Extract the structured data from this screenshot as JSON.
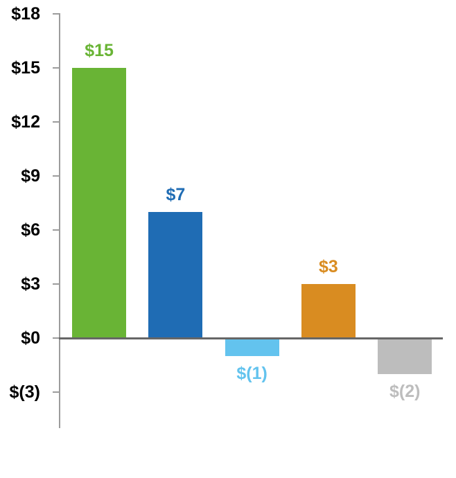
{
  "chart_data": {
    "type": "bar",
    "title": "",
    "xlabel": "",
    "ylabel": "",
    "grid": false,
    "legend": false,
    "baseline_value": 0,
    "values": [
      15,
      7,
      -1,
      3,
      -2
    ],
    "data_labels": [
      "$15",
      "$7",
      "$(1)",
      "$3",
      "$(2)"
    ],
    "bar_colors": [
      "#69B435",
      "#1F6CB4",
      "#63C3EE",
      "#D98C21",
      "#BDBDBD"
    ],
    "label_colors": [
      "#69B435",
      "#1F6CB4",
      "#63C3EE",
      "#D98C21",
      "#BDBDBD"
    ],
    "y_axis": {
      "tick_values": [
        18,
        15,
        12,
        9,
        6,
        3,
        0,
        -3
      ],
      "tick_labels": [
        "$18",
        "$15",
        "$12",
        "$9",
        "$6",
        "$3",
        "$0",
        "$(3)"
      ],
      "range_shown": [
        -5,
        18
      ]
    }
  },
  "style": {
    "axis_color": "#9C9C9C",
    "baseline_color": "#666666",
    "tick_label_color": "#000000",
    "background": "#FFFFFF"
  }
}
